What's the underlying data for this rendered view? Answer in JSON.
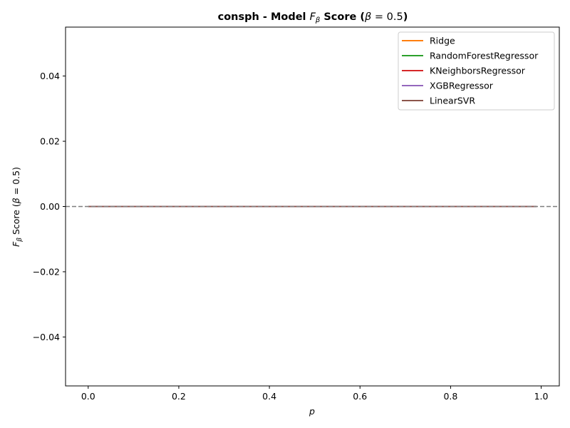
{
  "chart_data": {
    "type": "line",
    "title_prefix": "consph - Model ",
    "title_f": "F",
    "title_sub": "β",
    "title_suffix": " Score (",
    "title_beta": "β",
    "title_eq": " = 0.5",
    "title_close": ")",
    "xlabel": "p",
    "ylabel_f": "F",
    "ylabel_sub": "β",
    "ylabel_mid": " Score (",
    "ylabel_beta": "β",
    "ylabel_eq": " = 0.5)",
    "xlim": [
      -0.05,
      1.04
    ],
    "ylim": [
      -0.055,
      0.055
    ],
    "x_ticks": [
      0.0,
      0.2,
      0.4,
      0.6,
      0.8,
      1.0
    ],
    "x_tick_labels": [
      "0.0",
      "0.2",
      "0.4",
      "0.6",
      "0.8",
      "1.0"
    ],
    "y_ticks": [
      -0.04,
      -0.02,
      0.0,
      0.02,
      0.04
    ],
    "y_tick_labels": [
      "−0.04",
      "−0.02",
      "0.00",
      "0.02",
      "0.04"
    ],
    "grid": false,
    "legend_position": "top-right",
    "series": [
      {
        "name": "Ridge",
        "color": "#ff7f0e",
        "x": [
          0.0,
          0.99
        ],
        "y": [
          0.0,
          0.0
        ]
      },
      {
        "name": "RandomForestRegressor",
        "color": "#2ca02c",
        "x": [
          0.0,
          0.99
        ],
        "y": [
          0.0,
          0.0
        ]
      },
      {
        "name": "KNeighborsRegressor",
        "color": "#d62728",
        "x": [
          0.0,
          0.99
        ],
        "y": [
          0.0,
          0.0
        ]
      },
      {
        "name": "XGBRegressor",
        "color": "#9467bd",
        "x": [
          0.0,
          0.99
        ],
        "y": [
          0.0,
          0.0
        ]
      },
      {
        "name": "LinearSVR",
        "color": "#8c564b",
        "x": [
          0.0,
          0.99
        ],
        "y": [
          0.0,
          0.0
        ]
      }
    ],
    "reference_line": {
      "y": 0.0,
      "color": "#7f7f7f",
      "style": "dashed"
    }
  }
}
